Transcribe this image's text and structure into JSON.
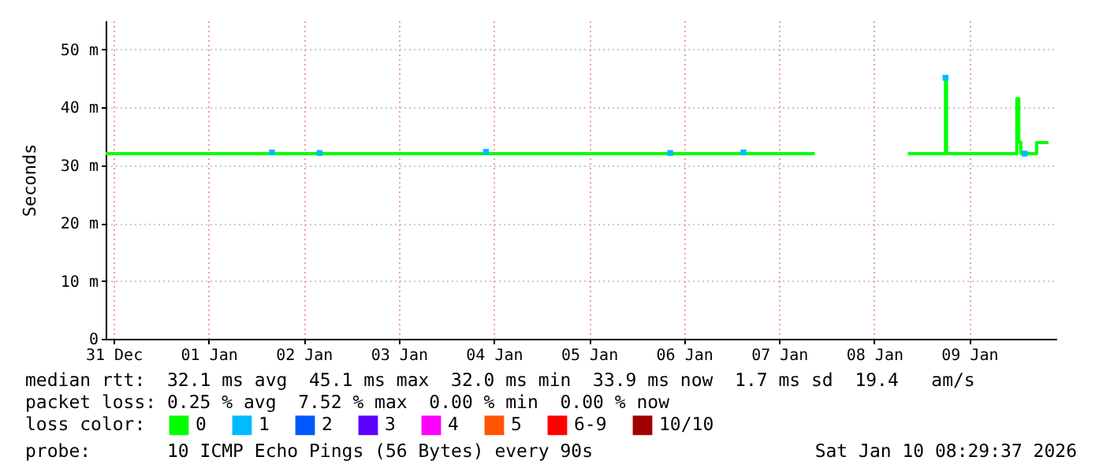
{
  "chart_data": {
    "type": "line",
    "ylabel": "Seconds",
    "legend_title": "loss color:",
    "annotations": [
      "median rtt:  32.1 ms avg  45.1 ms max  32.0 ms min  33.9 ms now  1.7 ms sd  19.4   am/s",
      "packet loss: 0.25 % avg  7.52 % max  0.00 % min  0.00 % now",
      "probe:       10 ICMP Echo Pings (56 Bytes) every 90s",
      "Sat Jan 10 08:29:37 2026"
    ],
    "xlim": [
      "2025-12-30T22:00",
      "2026-01-09T22:00"
    ],
    "xticks": [
      {
        "value": "2025-12-31",
        "label": "31 Dec"
      },
      {
        "value": "2026-01-01",
        "label": "01 Jan"
      },
      {
        "value": "2026-01-02",
        "label": "02 Jan"
      },
      {
        "value": "2026-01-03",
        "label": "03 Jan"
      },
      {
        "value": "2026-01-04",
        "label": "04 Jan"
      },
      {
        "value": "2026-01-05",
        "label": "05 Jan"
      },
      {
        "value": "2026-01-06",
        "label": "06 Jan"
      },
      {
        "value": "2026-01-07",
        "label": "07 Jan"
      },
      {
        "value": "2026-01-08",
        "label": "08 Jan"
      },
      {
        "value": "2026-01-09",
        "label": "09 Jan"
      }
    ],
    "ylim": [
      0,
      55
    ],
    "yticks": [
      0,
      {
        "value": 10,
        "label": "10 m"
      },
      {
        "value": 20,
        "label": "20 m"
      },
      {
        "value": 30,
        "label": "30 m"
      },
      {
        "value": 40,
        "label": "40 m"
      },
      {
        "value": 50,
        "label": "50 m"
      }
    ],
    "grid": true,
    "legend": "bottom left",
    "series": [
      {
        "name": "0",
        "color": "#00ff00",
        "x": [
          "2025-12-30T22:00",
          "2026-01-01T00:00",
          "2026-01-02T00:00",
          "2026-01-03T00:00",
          "2026-01-04T00:00",
          "2026-01-05T00:00",
          "2026-01-06T00:00",
          "2026-01-07T00:00",
          "2026-01-07T09:00",
          "2026-01-07T20:00",
          "2026-01-08T08:30",
          "2026-01-08T17:45",
          "2026-01-08T18:00",
          "2026-01-08T18:15",
          "2026-01-09T00:00",
          "2026-01-09T11:45",
          "2026-01-09T12:00",
          "2026-01-09T12:30",
          "2026-01-09T13:00",
          "2026-01-09T16:30",
          "2026-01-09T17:00",
          "2026-01-09T20:00"
        ],
        "values": [
          32,
          32,
          32,
          32,
          32,
          32,
          32,
          32,
          32,
          null,
          32,
          32,
          45.1,
          32,
          32,
          32,
          41.5,
          34,
          32,
          32,
          33.9,
          33.9
        ]
      },
      {
        "name": "1",
        "color": "#00bbff",
        "type": "scatter",
        "x": [
          "2026-01-01T16:00",
          "2026-01-02T04:00",
          "2026-01-03T22:00",
          "2026-01-05T20:30",
          "2026-01-06T15:00",
          "2026-01-08T18:00",
          "2026-01-09T14:00"
        ],
        "values": [
          32.2,
          32.1,
          32.3,
          32.1,
          32.2,
          45.1,
          32
        ]
      },
      {
        "name": "2",
        "color": "#0059ff"
      },
      {
        "name": "3",
        "color": "#5e00ff"
      },
      {
        "name": "4",
        "color": "#ff00ff"
      },
      {
        "name": "5",
        "color": "#ff5500"
      },
      {
        "name": "6-9",
        "color": "#ff0000"
      },
      {
        "name": "10/10",
        "color": "#a10000"
      }
    ]
  }
}
